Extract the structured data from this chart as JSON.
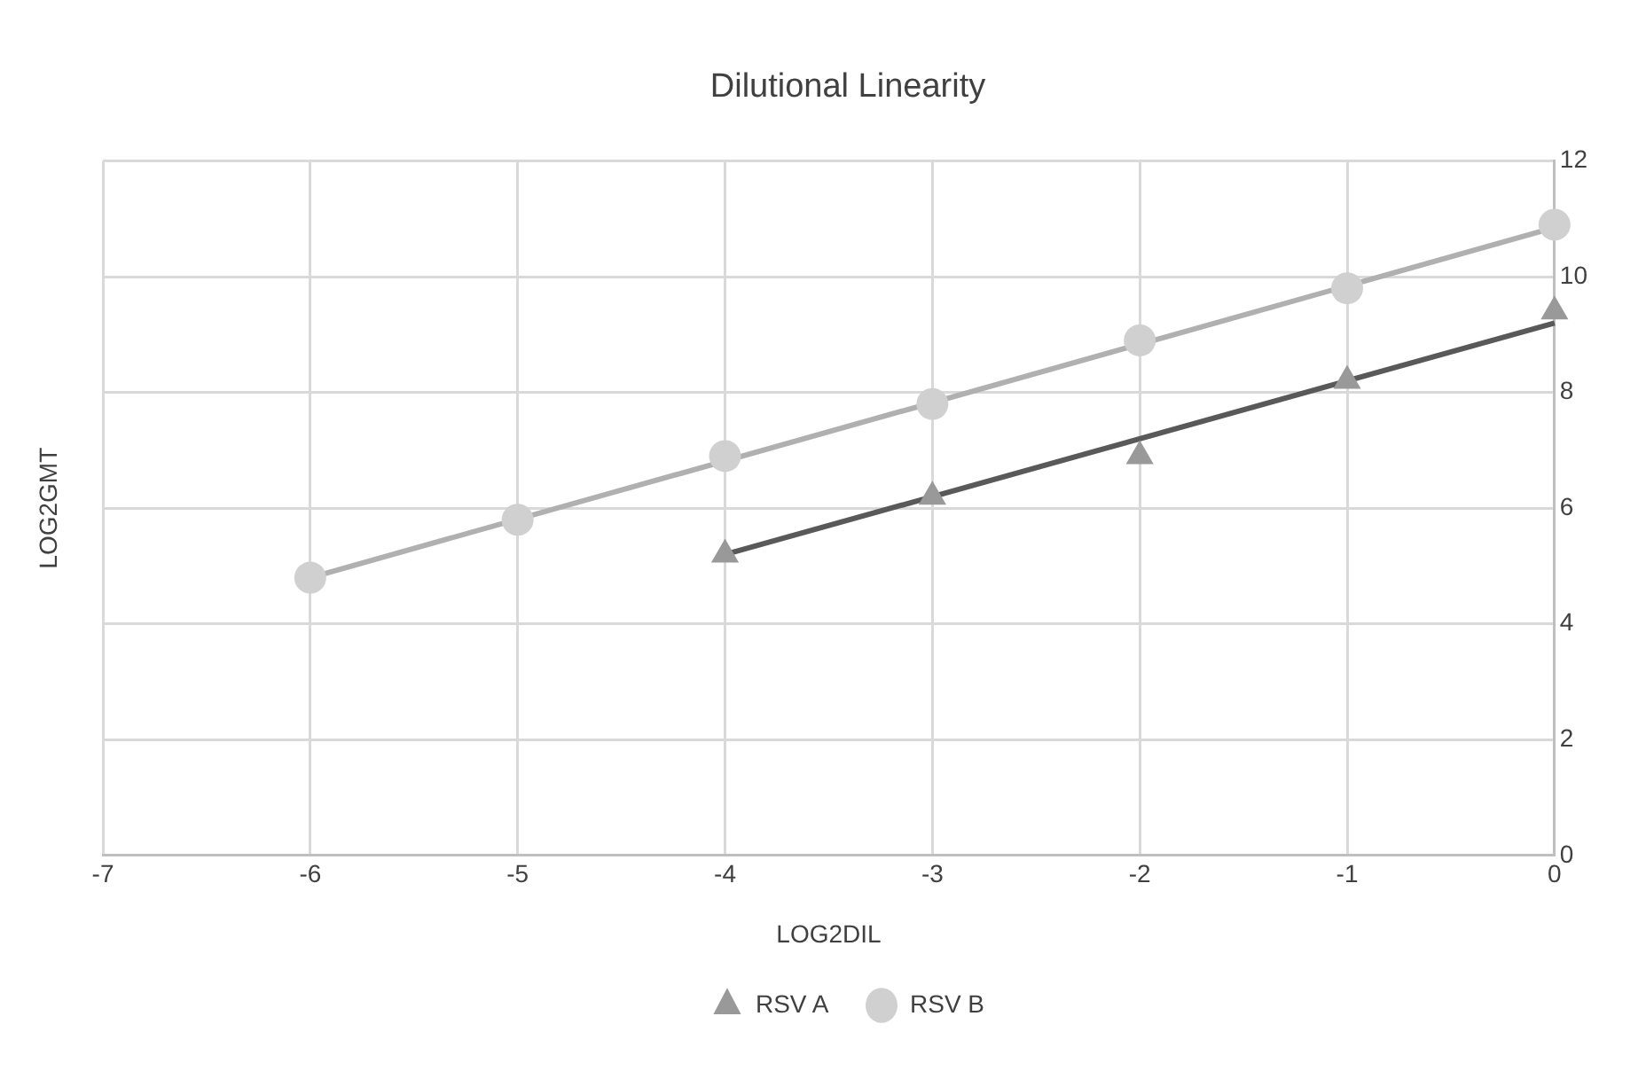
{
  "chart_data": {
    "type": "scatter",
    "title": "Dilutional Linearity",
    "xlabel": "LOG2DIL",
    "ylabel": "LOG2GMT",
    "xlim": [
      -7,
      0
    ],
    "xticks": [
      -7,
      -6,
      -5,
      -4,
      -3,
      -2,
      -1,
      0
    ],
    "ylim": [
      0,
      12
    ],
    "yticks": [
      0,
      2,
      4,
      6,
      8,
      10,
      12
    ],
    "grid": true,
    "legend": "bottom",
    "series": [
      {
        "name": "RSV A",
        "type": "scatter",
        "marker": "triangle",
        "color": "#999999",
        "x": [
          -4,
          -3,
          -2,
          -1,
          0
        ],
        "values": [
          5.2,
          6.2,
          6.9,
          8.2,
          9.4
        ]
      },
      {
        "name": "RSV B",
        "type": "scatter",
        "marker": "circle",
        "color": "#d0d0d0",
        "x": [
          -6,
          -5,
          -4,
          -3,
          -2,
          -1,
          0
        ],
        "values": [
          4.8,
          5.8,
          6.9,
          7.8,
          8.9,
          9.8,
          10.9
        ]
      },
      {
        "type": "line",
        "marker": "none",
        "color": "#595959",
        "x": [
          -4,
          0
        ],
        "values": [
          5.2,
          9.2
        ]
      },
      {
        "type": "line",
        "marker": "none",
        "color": "#b0b0b0",
        "x": [
          -6,
          0
        ],
        "values": [
          4.8,
          10.85
        ]
      }
    ]
  }
}
